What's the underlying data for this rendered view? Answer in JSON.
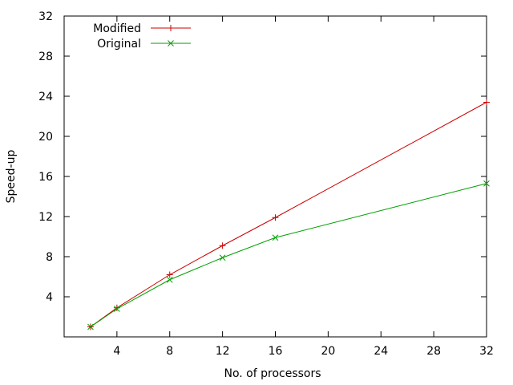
{
  "chart_data": {
    "type": "line",
    "xlabel": "No. of processors",
    "ylabel": "Speed-up",
    "xlim": [
      0,
      32
    ],
    "ylim": [
      0,
      32
    ],
    "x_ticks": [
      4,
      8,
      12,
      16,
      20,
      24,
      28,
      32
    ],
    "y_ticks": [
      4,
      8,
      12,
      16,
      20,
      24,
      28,
      32
    ],
    "x_tick_labels": [
      "4",
      "8",
      "12",
      "16",
      "20",
      "24",
      "28",
      "32"
    ],
    "y_tick_labels": [
      "4",
      "8",
      "12",
      "16",
      "20",
      "24",
      "28",
      "32"
    ],
    "legend_position": "top-left",
    "grid": false,
    "series": [
      {
        "name": "Modified",
        "color": "#cc0000",
        "marker": "plus",
        "x": [
          2,
          4,
          8,
          12,
          16,
          32
        ],
        "y": [
          1.0,
          2.9,
          6.2,
          9.1,
          11.9,
          23.4
        ]
      },
      {
        "name": "Original",
        "color": "#00a000",
        "marker": "cross",
        "x": [
          2,
          4,
          8,
          12,
          16,
          32
        ],
        "y": [
          1.0,
          2.8,
          5.7,
          7.9,
          9.9,
          15.3
        ]
      }
    ]
  }
}
